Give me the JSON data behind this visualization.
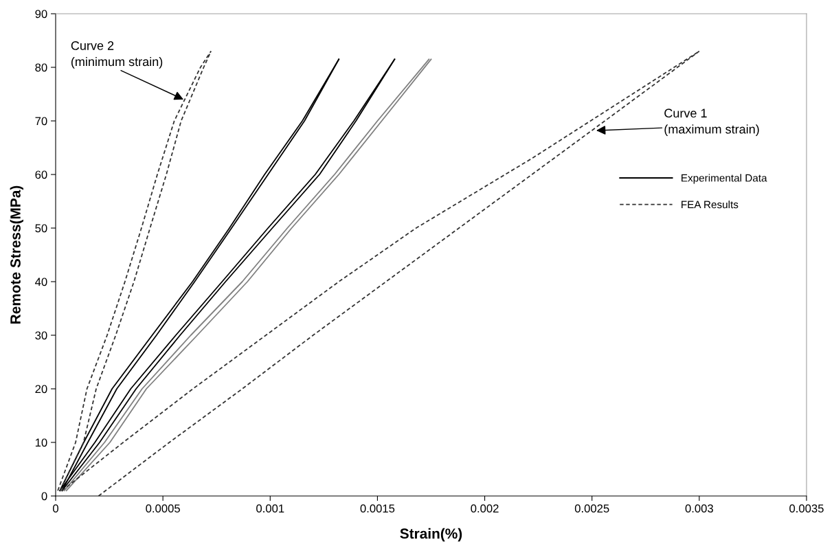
{
  "chart_data": {
    "type": "line",
    "xlabel": "Strain(%)",
    "ylabel": "Remote Stress(MPa)",
    "xlim": [
      0,
      0.0035
    ],
    "xticks": [
      0,
      0.0005,
      0.001,
      0.0015,
      0.002,
      0.0025,
      0.003,
      0.0035
    ],
    "ylim": [
      0,
      90
    ],
    "yticks": [
      0,
      10,
      20,
      30,
      40,
      50,
      60,
      70,
      80,
      90
    ],
    "grid": false,
    "legend": "right",
    "marker": "none",
    "series": [
      {
        "name": "Experimental Data",
        "color": "#000000",
        "line_style": "solid",
        "x": [
          2e-05,
          0.000131,
          0.000263,
          0.00045,
          0.000638,
          0.00081,
          0.000974,
          0.00115,
          0.00132
        ],
        "values": [
          1,
          10,
          20,
          30,
          40,
          50,
          60,
          70,
          81.5
        ]
      },
      {
        "color": "#000000",
        "line_style": "solid",
        "x": [
          3e-05,
          0.00015,
          0.000285,
          0.00047,
          0.000648,
          0.00082,
          0.00099,
          0.00116,
          0.00132
        ],
        "values": [
          1,
          10,
          20,
          30,
          40,
          50,
          60,
          70,
          81.5
        ]
      },
      {
        "color": "#000000",
        "line_style": "solid",
        "x": [
          2e-05,
          0.000183,
          0.00035,
          0.00056,
          0.000776,
          0.00099,
          0.00121,
          0.00139,
          0.00158
        ],
        "values": [
          1,
          10,
          20,
          30,
          40,
          50,
          60,
          70,
          81.5
        ]
      },
      {
        "color": "#000000",
        "line_style": "solid",
        "x": [
          3e-05,
          0.000205,
          0.000375,
          0.00058,
          0.000792,
          0.00101,
          0.00123,
          0.0014,
          0.00158
        ],
        "values": [
          1,
          10,
          20,
          30,
          40,
          50,
          60,
          70,
          81.5
        ]
      },
      {
        "color": "#808080",
        "line_style": "solid",
        "x": [
          4e-05,
          0.000228,
          0.000403,
          0.00063,
          0.00087,
          0.00108,
          0.0013,
          0.0015,
          0.00174
        ],
        "values": [
          1,
          10,
          20,
          30,
          40,
          50,
          60,
          70,
          81.5
        ]
      },
      {
        "color": "#808080",
        "line_style": "solid",
        "x": [
          5e-05,
          0.000253,
          0.000423,
          0.00066,
          0.000894,
          0.0011,
          0.00132,
          0.00152,
          0.00175
        ],
        "values": [
          1,
          10,
          20,
          30,
          40,
          50,
          60,
          70,
          81.5
        ]
      },
      {
        "name": "FEA Results",
        "color": "#333333",
        "line_style": "dashed",
        "x": [
          1e-05,
          9.3e-05,
          0.000146,
          0.00024,
          0.000323,
          0.0004,
          0.000474,
          0.000553,
          0.000675,
          0.000724
        ],
        "values": [
          1,
          10,
          20,
          30,
          40,
          50,
          60,
          70,
          80,
          83
        ]
      },
      {
        "color": "#333333",
        "line_style": "dashed",
        "x": [
          2e-05,
          0.00013,
          0.000189,
          0.00028,
          0.000365,
          0.00044,
          0.000516,
          0.000585,
          0.00069,
          0.000724
        ],
        "values": [
          1,
          10,
          20,
          30,
          40,
          50,
          60,
          70,
          80,
          83
        ]
      },
      {
        "color": "#333333",
        "line_style": "dashed",
        "x": [
          3e-05,
          0.000315,
          0.00064,
          0.00098,
          0.00132,
          0.00168,
          0.00222,
          0.003
        ],
        "values": [
          1,
          10,
          20,
          30,
          40,
          50,
          63,
          83
        ]
      },
      {
        "color": "#333333",
        "line_style": "dashed",
        "x": [
          0.0002,
          0.00053,
          0.00087,
          0.0012,
          0.00154,
          0.00188,
          0.00222,
          0.00256,
          0.003
        ],
        "values": [
          0,
          10,
          20,
          30,
          40,
          50,
          60,
          70,
          83
        ]
      }
    ],
    "annotations": [
      {
        "text": "Curve 2\n(minimum strain)",
        "x": 0.000596,
        "y": 74
      },
      {
        "text": "Curve 1\n(maximum strain)",
        "x": 0.00252,
        "y": 68.2
      }
    ]
  }
}
